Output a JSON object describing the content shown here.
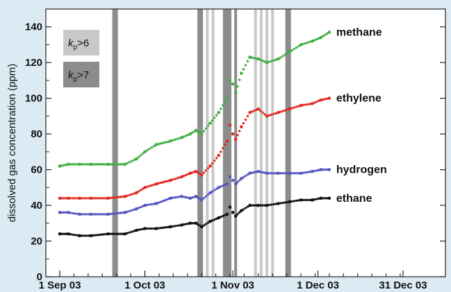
{
  "chart_data": {
    "type": "scatter",
    "ylabel": "dissolved gas concentration (ppm)",
    "xlabel": "",
    "ylim": [
      0,
      150
    ],
    "xlim": [
      "2003-09-01",
      "2003-12-31"
    ],
    "x_ticks": [
      {
        "date": "2003-09-01",
        "label": "1 Sep 03"
      },
      {
        "date": "2003-10-01",
        "label": "1 Oct 03"
      },
      {
        "date": "2003-11-01",
        "label": "1 Nov 03"
      },
      {
        "date": "2003-12-01",
        "label": "1 Dec 03"
      },
      {
        "date": "2003-12-31",
        "label": "31 Dec 03"
      }
    ],
    "y_ticks": [
      0,
      20,
      40,
      60,
      80,
      100,
      120,
      140
    ],
    "grid": false,
    "legend": [
      {
        "label": "k",
        "subscript": "p",
        "suffix": ">6",
        "color": "#c8c8c8"
      },
      {
        "label": "k",
        "subscript": "p",
        "suffix": ">7",
        "color": "#8c8c8c"
      }
    ],
    "shaded_periods": [
      {
        "start": "2003-09-20",
        "end": "2003-09-21",
        "level": "kp>7"
      },
      {
        "start": "2003-10-20",
        "end": "2003-10-21",
        "level": "kp>7"
      },
      {
        "start": "2003-10-23",
        "end": "2003-10-23",
        "level": "kp>6"
      },
      {
        "start": "2003-10-25",
        "end": "2003-10-25",
        "level": "kp>6"
      },
      {
        "start": "2003-10-29",
        "end": "2003-10-31",
        "level": "kp>7"
      },
      {
        "start": "2003-11-02",
        "end": "2003-11-02",
        "level": "kp>7"
      },
      {
        "start": "2003-11-09",
        "end": "2003-11-09",
        "level": "kp>6"
      },
      {
        "start": "2003-11-11",
        "end": "2003-11-11",
        "level": "kp>6"
      },
      {
        "start": "2003-11-13",
        "end": "2003-11-13",
        "level": "kp>6"
      },
      {
        "start": "2003-11-15",
        "end": "2003-11-15",
        "level": "kp>6"
      },
      {
        "start": "2003-11-20",
        "end": "2003-11-21",
        "level": "kp>7"
      }
    ],
    "series": [
      {
        "name": "methane",
        "color": "#3fae3f",
        "points": [
          [
            "2003-09-01",
            62
          ],
          [
            "2003-09-04",
            63
          ],
          [
            "2003-09-08",
            63
          ],
          [
            "2003-09-12",
            63
          ],
          [
            "2003-09-18",
            63
          ],
          [
            "2003-09-24",
            63
          ],
          [
            "2003-09-28",
            66
          ],
          [
            "2003-10-01",
            70
          ],
          [
            "2003-10-05",
            74
          ],
          [
            "2003-10-10",
            76
          ],
          [
            "2003-10-14",
            78
          ],
          [
            "2003-10-17",
            80
          ],
          [
            "2003-10-19",
            82
          ],
          [
            "2003-10-21",
            80
          ],
          [
            "2003-10-24",
            86
          ],
          [
            "2003-10-27",
            92
          ],
          [
            "2003-10-30",
            100
          ],
          [
            "2003-10-31",
            110
          ],
          [
            "2003-11-01",
            108
          ],
          [
            "2003-11-02",
            103
          ],
          [
            "2003-11-04",
            114
          ],
          [
            "2003-11-07",
            123
          ],
          [
            "2003-11-10",
            122
          ],
          [
            "2003-11-13",
            120
          ],
          [
            "2003-11-17",
            122
          ],
          [
            "2003-11-21",
            126
          ],
          [
            "2003-11-25",
            130
          ],
          [
            "2003-11-29",
            132
          ],
          [
            "2003-12-02",
            134
          ],
          [
            "2003-12-05",
            137
          ]
        ]
      },
      {
        "name": "ethylene",
        "color": "#e02b20",
        "points": [
          [
            "2003-09-01",
            44
          ],
          [
            "2003-09-04",
            44
          ],
          [
            "2003-09-08",
            44
          ],
          [
            "2003-09-12",
            44
          ],
          [
            "2003-09-18",
            44
          ],
          [
            "2003-09-24",
            45
          ],
          [
            "2003-09-28",
            47
          ],
          [
            "2003-10-01",
            50
          ],
          [
            "2003-10-05",
            52
          ],
          [
            "2003-10-10",
            54
          ],
          [
            "2003-10-14",
            56
          ],
          [
            "2003-10-17",
            58
          ],
          [
            "2003-10-19",
            59
          ],
          [
            "2003-10-21",
            57
          ],
          [
            "2003-10-24",
            62
          ],
          [
            "2003-10-27",
            68
          ],
          [
            "2003-10-30",
            76
          ],
          [
            "2003-10-31",
            85
          ],
          [
            "2003-11-01",
            80
          ],
          [
            "2003-11-02",
            77
          ],
          [
            "2003-11-04",
            84
          ],
          [
            "2003-11-07",
            92
          ],
          [
            "2003-11-10",
            94
          ],
          [
            "2003-11-13",
            90
          ],
          [
            "2003-11-17",
            92
          ],
          [
            "2003-11-21",
            94
          ],
          [
            "2003-11-25",
            96
          ],
          [
            "2003-11-29",
            97
          ],
          [
            "2003-12-02",
            99
          ],
          [
            "2003-12-05",
            100
          ]
        ]
      },
      {
        "name": "hydrogen",
        "color": "#5555c0",
        "points": [
          [
            "2003-09-01",
            36
          ],
          [
            "2003-09-04",
            36
          ],
          [
            "2003-09-08",
            35
          ],
          [
            "2003-09-12",
            35
          ],
          [
            "2003-09-18",
            35
          ],
          [
            "2003-09-24",
            36
          ],
          [
            "2003-09-28",
            38
          ],
          [
            "2003-10-01",
            40
          ],
          [
            "2003-10-05",
            41
          ],
          [
            "2003-10-10",
            44
          ],
          [
            "2003-10-14",
            45
          ],
          [
            "2003-10-17",
            44
          ],
          [
            "2003-10-19",
            45
          ],
          [
            "2003-10-21",
            43
          ],
          [
            "2003-10-24",
            47
          ],
          [
            "2003-10-27",
            50
          ],
          [
            "2003-10-30",
            52
          ],
          [
            "2003-10-31",
            56
          ],
          [
            "2003-11-01",
            54
          ],
          [
            "2003-11-02",
            52
          ],
          [
            "2003-11-04",
            55
          ],
          [
            "2003-11-07",
            58
          ],
          [
            "2003-11-10",
            59
          ],
          [
            "2003-11-13",
            58
          ],
          [
            "2003-11-17",
            58
          ],
          [
            "2003-11-21",
            58
          ],
          [
            "2003-11-25",
            58
          ],
          [
            "2003-11-29",
            59
          ],
          [
            "2003-12-02",
            60
          ],
          [
            "2003-12-05",
            60
          ]
        ]
      },
      {
        "name": "ethane",
        "color": "#111111",
        "points": [
          [
            "2003-09-01",
            24
          ],
          [
            "2003-09-04",
            24
          ],
          [
            "2003-09-08",
            23
          ],
          [
            "2003-09-12",
            23
          ],
          [
            "2003-09-18",
            24
          ],
          [
            "2003-09-24",
            24
          ],
          [
            "2003-09-28",
            26
          ],
          [
            "2003-10-01",
            27
          ],
          [
            "2003-10-05",
            27
          ],
          [
            "2003-10-10",
            28
          ],
          [
            "2003-10-14",
            29
          ],
          [
            "2003-10-17",
            30
          ],
          [
            "2003-10-19",
            30
          ],
          [
            "2003-10-21",
            28
          ],
          [
            "2003-10-24",
            31
          ],
          [
            "2003-10-27",
            33
          ],
          [
            "2003-10-30",
            35
          ],
          [
            "2003-10-31",
            39
          ],
          [
            "2003-11-01",
            36
          ],
          [
            "2003-11-02",
            34
          ],
          [
            "2003-11-04",
            37
          ],
          [
            "2003-11-07",
            40
          ],
          [
            "2003-11-10",
            40
          ],
          [
            "2003-11-13",
            40
          ],
          [
            "2003-11-17",
            41
          ],
          [
            "2003-11-21",
            42
          ],
          [
            "2003-11-25",
            43
          ],
          [
            "2003-11-29",
            43
          ],
          [
            "2003-12-02",
            44
          ],
          [
            "2003-12-05",
            44
          ]
        ]
      }
    ]
  }
}
